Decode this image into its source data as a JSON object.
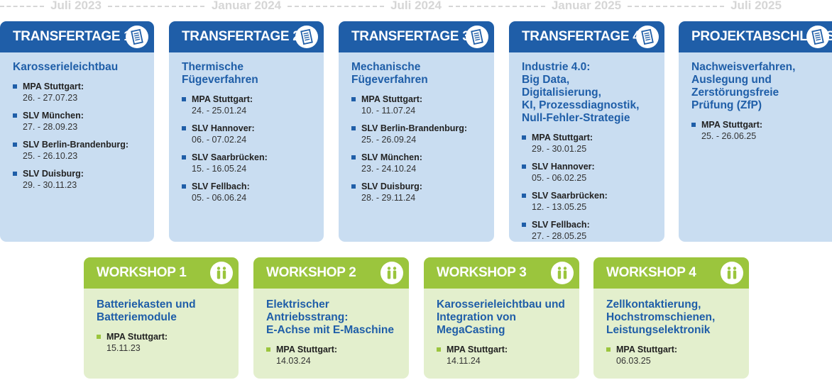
{
  "timeline": [
    "Juli 2023",
    "Januar 2024",
    "Juli 2024",
    "Januar 2025",
    "Juli 2025"
  ],
  "colors": {
    "transfer_header": "#1f5ea8",
    "transfer_body": "#c9ddf1",
    "workshop_header": "#9bc53d",
    "workshop_body": "#e3efcd"
  },
  "transfertage": [
    {
      "title": "TRANSFERTAGE 1",
      "icon": "document-icon",
      "topic": "Karosserieleichtbau",
      "entries": [
        {
          "loc": "MPA Stuttgart:",
          "date": "26. - 27.07.23"
        },
        {
          "loc": "SLV München:",
          "date": "27. - 28.09.23"
        },
        {
          "loc": "SLV Berlin-Brandenburg:",
          "date": "25. - 26.10.23"
        },
        {
          "loc": "SLV Duisburg:",
          "date": "29. - 30.11.23"
        }
      ]
    },
    {
      "title": "TRANSFERTAGE 2",
      "icon": "document-icon",
      "topic": "Thermische Fügeverfahren",
      "entries": [
        {
          "loc": "MPA Stuttgart:",
          "date": "24. - 25.01.24"
        },
        {
          "loc": "SLV Hannover:",
          "date": "06. - 07.02.24"
        },
        {
          "loc": "SLV Saarbrücken:",
          "date": "15. - 16.05.24"
        },
        {
          "loc": "SLV Fellbach:",
          "date": "05. - 06.06.24"
        }
      ]
    },
    {
      "title": "TRANSFERTAGE 3",
      "icon": "document-icon",
      "topic": "Mechanische Fügeverfahren",
      "entries": [
        {
          "loc": "MPA Stuttgart:",
          "date": "10. - 11.07.24"
        },
        {
          "loc": "SLV Berlin-Brandenburg:",
          "date": "25. - 26.09.24"
        },
        {
          "loc": "SLV München:",
          "date": "23. - 24.10.24"
        },
        {
          "loc": "SLV Duisburg:",
          "date": "28. - 29.11.24"
        }
      ]
    },
    {
      "title": "TRANSFERTAGE 4",
      "icon": "document-icon",
      "topic_lines": [
        "Industrie 4.0:",
        "Big Data, Digitalisierung,",
        "KI, Prozessdiagnostik,",
        "Null-Fehler-Strategie"
      ],
      "entries": [
        {
          "loc": "MPA Stuttgart:",
          "date": "29. - 30.01.25"
        },
        {
          "loc": "SLV Hannover:",
          "date": "05. - 06.02.25"
        },
        {
          "loc": "SLV Saarbrücken:",
          "date": "12. - 13.05.25"
        },
        {
          "loc": "SLV Fellbach:",
          "date": "27. - 28.05.25"
        }
      ]
    },
    {
      "title": "PROJEKTABSCHLUSS",
      "icon": "document-icon",
      "topic_lines": [
        "Nachweisverfahren,",
        "Auslegung und",
        "Zerstörungsfreie",
        "Prüfung (ZfP)"
      ],
      "entries": [
        {
          "loc": "MPA Stuttgart:",
          "date": "25. - 26.06.25"
        }
      ]
    }
  ],
  "workshops": [
    {
      "title": "WORKSHOP 1",
      "icon": "people-icon",
      "topic_lines": [
        "Batteriekasten und",
        "Batteriemodule"
      ],
      "entries": [
        {
          "loc": "MPA Stuttgart:",
          "date": "15.11.23"
        }
      ]
    },
    {
      "title": "WORKSHOP 2",
      "icon": "people-icon",
      "topic_lines": [
        "Elektrischer Antriebsstrang:",
        "E-Achse mit E-Maschine"
      ],
      "entries": [
        {
          "loc": "MPA Stuttgart:",
          "date": "14.03.24"
        }
      ]
    },
    {
      "title": "WORKSHOP 3",
      "icon": "people-icon",
      "topic_lines": [
        "Karosserieleichtbau und",
        "Integration von MegaCasting"
      ],
      "entries": [
        {
          "loc": "MPA Stuttgart:",
          "date": "14.11.24"
        }
      ]
    },
    {
      "title": "WORKSHOP 4",
      "icon": "people-icon",
      "topic_lines": [
        "Zellkontaktierung,",
        "Hochstromschienen,",
        "Leistungselektronik"
      ],
      "entries": [
        {
          "loc": "MPA Stuttgart:",
          "date": "06.03.25"
        }
      ]
    }
  ]
}
